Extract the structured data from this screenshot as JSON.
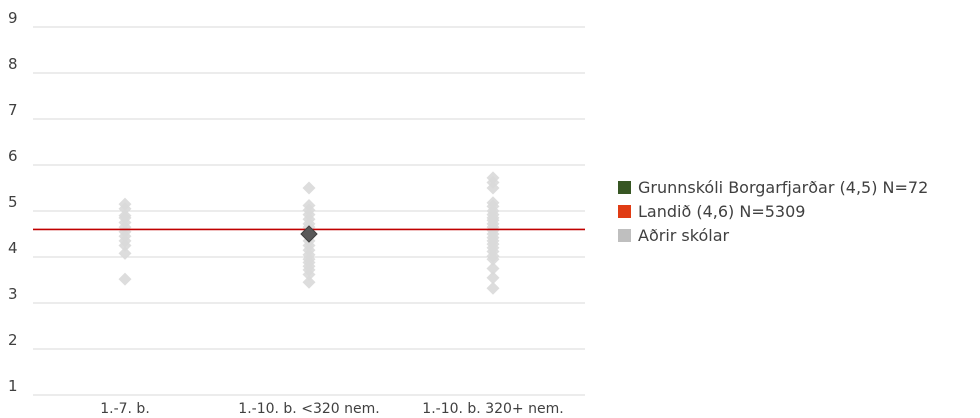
{
  "chart_data": {
    "type": "scatter",
    "title": "",
    "xlabel": "",
    "ylabel": "",
    "ylim": [
      1,
      9
    ],
    "yticks": [
      1,
      2,
      3,
      4,
      5,
      6,
      7,
      8,
      9
    ],
    "grid": true,
    "legend_position": "right",
    "categories": [
      "1.-7. b.",
      "1.-10. b. <320 nem.",
      "1.-10. b. 320+ nem."
    ],
    "reference_line": {
      "name": "Landið (4,6) N=5309",
      "value": 4.6,
      "color": "#c00000"
    },
    "series": [
      {
        "name": "Grunnskóli Borgarfjarðar (4,5) N=72",
        "color": "#375623",
        "marker_color": "#595959",
        "points": [
          {
            "category": "1.-10. b. <320 nem.",
            "value": 4.5
          }
        ]
      },
      {
        "name": "Aðrir skólar",
        "color": "#bfbfbf",
        "points_by_category": [
          [
            5.15,
            5.05,
            4.9,
            4.85,
            4.75,
            4.65,
            4.55,
            4.45,
            4.35,
            4.25,
            4.08,
            3.52
          ],
          [
            5.5,
            5.12,
            5.02,
            4.92,
            4.82,
            4.72,
            4.65,
            4.55,
            4.45,
            4.35,
            4.25,
            4.15,
            4.05,
            3.95,
            3.88,
            3.8,
            3.72,
            3.62,
            3.45
          ],
          [
            5.72,
            5.62,
            5.5,
            5.18,
            5.1,
            5.0,
            4.92,
            4.85,
            4.8,
            4.72,
            4.65,
            4.58,
            4.5,
            4.42,
            4.35,
            4.28,
            4.2,
            4.12,
            4.02,
            3.95,
            3.75,
            3.55,
            3.32
          ]
        ]
      }
    ]
  },
  "legend": [
    {
      "label": "Grunnskóli Borgarfjarðar (4,5) N=72",
      "color": "#375623"
    },
    {
      "label": "Landið (4,6) N=5309",
      "color": "#e03c14"
    },
    {
      "label": "Aðrir skólar",
      "color": "#bfbfbf"
    }
  ]
}
